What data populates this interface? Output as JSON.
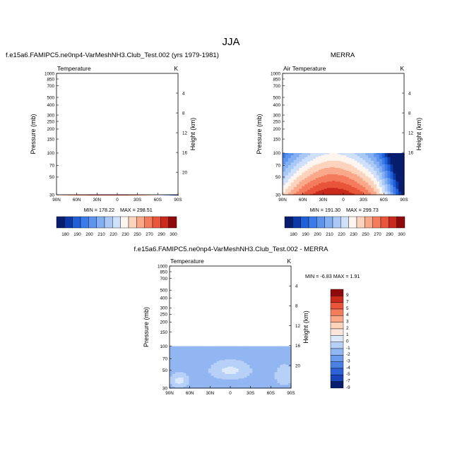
{
  "figure": {
    "title": "JJA"
  },
  "chart_data": [
    {
      "type": "heatmap",
      "panel": "model",
      "title": "f.e15a6.FAMIPC5.ne0np4-VarMeshNH3.Club_Test.002 (yrs 1979-1981)",
      "left_label": "Temperature",
      "right_label": "K",
      "xlabel": "",
      "x_ticks": [
        "90N",
        "60N",
        "30N",
        "0",
        "30S",
        "60S",
        "90S"
      ],
      "ylabel": "Pressure (mb)",
      "y_ticks": [
        30,
        50,
        70,
        100,
        150,
        200,
        250,
        300,
        400,
        500,
        700,
        850,
        1000
      ],
      "ylim": [
        1000,
        30
      ],
      "ylabel_right": "Height (km)",
      "y2_ticks": [
        4,
        8,
        12,
        16,
        20
      ],
      "min_label": "MIN = 178.22",
      "max_label": "MAX = 298.51",
      "min": 178.22,
      "max": 298.51,
      "data_top_mb": 30,
      "colorbar_labels": [
        "180",
        "190",
        "200",
        "210",
        "220",
        "230",
        "250",
        "270",
        "290",
        "300"
      ]
    },
    {
      "type": "heatmap",
      "panel": "obs",
      "title": "MERRA",
      "left_label": "Air Temperature",
      "right_label": "K",
      "xlabel": "",
      "x_ticks": [
        "90N",
        "60N",
        "30N",
        "0",
        "30S",
        "60S",
        "90S"
      ],
      "ylabel": "Pressure (mb)",
      "y_ticks": [
        30,
        50,
        70,
        100,
        150,
        200,
        250,
        300,
        400,
        500,
        700,
        850,
        1000
      ],
      "ylim": [
        1000,
        30
      ],
      "ylabel_right": "Height (km)",
      "y2_ticks": [
        4,
        8,
        12,
        16
      ],
      "min_label": "MIN = 191.30",
      "max_label": "MAX = 299.73",
      "min": 191.3,
      "max": 299.73,
      "data_top_mb": 100,
      "colorbar_labels": [
        "180",
        "190",
        "200",
        "210",
        "220",
        "230",
        "250",
        "270",
        "290",
        "300"
      ]
    },
    {
      "type": "heatmap",
      "panel": "diff",
      "title": "f.e15a6.FAMIPC5.ne0np4-VarMeshNH3.Club_Test.002 - MERRA",
      "left_label": "Temperature",
      "right_label": "K",
      "xlabel": "",
      "x_ticks": [
        "90N",
        "60N",
        "30N",
        "0",
        "30S",
        "60S",
        "90S"
      ],
      "ylabel": "Pressure (mb)",
      "y_ticks": [
        30,
        50,
        70,
        100,
        150,
        200,
        250,
        300,
        400,
        500,
        700,
        850,
        1000
      ],
      "ylim": [
        1000,
        30
      ],
      "ylabel_right": "Height (km)",
      "y2_ticks": [
        4,
        8,
        12,
        16,
        20
      ],
      "minmax_label": "MIN =  -6.83  MAX =   1.91",
      "min": -6.83,
      "max": 1.91,
      "data_top_mb": 100,
      "colorbar_labels": [
        "9",
        "7",
        "5",
        "4",
        "3",
        "2",
        "1",
        "0",
        "-1",
        "-2",
        "-3",
        "-4",
        "-5",
        "-7",
        "-9"
      ]
    }
  ],
  "colors": {
    "temp_scale": [
      "#081d6e",
      "#0b3aa8",
      "#1f5fd8",
      "#3b7ae8",
      "#5e93ee",
      "#83aff3",
      "#a9c8f6",
      "#cfe0fa",
      "#fff5ef",
      "#fcd3bd",
      "#f9a98a",
      "#f47c5d",
      "#e8553a",
      "#c92a1c",
      "#8f0b0b"
    ],
    "diff_scale": [
      "#8f0b0b",
      "#c92a1c",
      "#e8553a",
      "#f47c5d",
      "#f9a98a",
      "#fcd3bd",
      "#fbe6d9",
      "#dde9fb",
      "#b7d0f7",
      "#92b6f2",
      "#6c9aed",
      "#4a7fe4",
      "#2f62d6",
      "#1b44ba",
      "#081d6e"
    ]
  }
}
